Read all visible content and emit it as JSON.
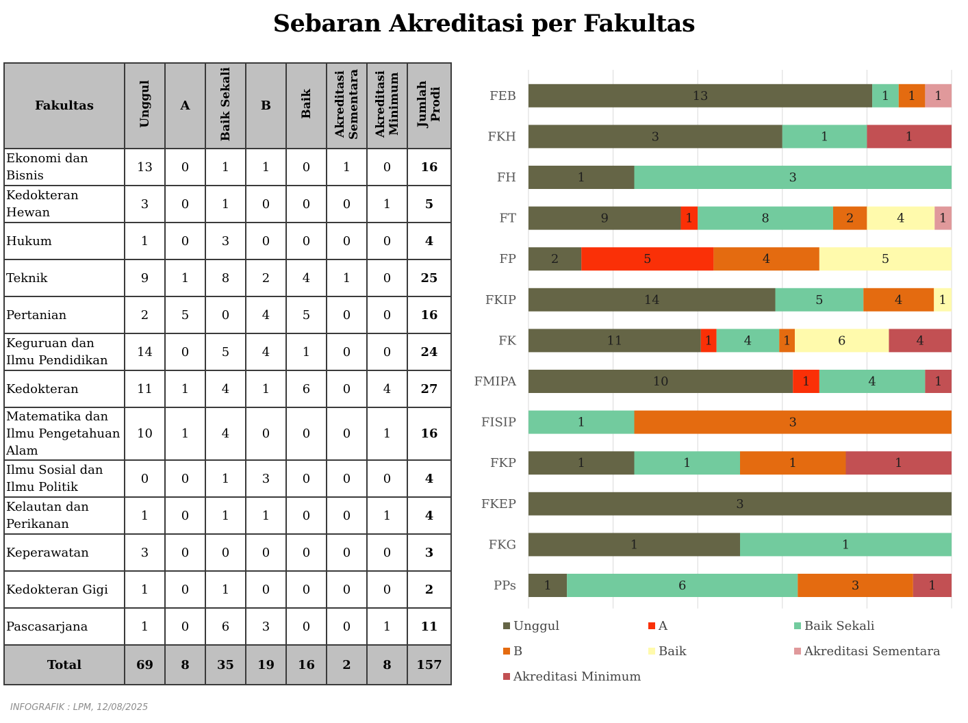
{
  "title": "Sebaran Akreditasi per Fakultas",
  "footnote": "INFOGRAFIK : LPM, 12/08/2025",
  "table": {
    "headers": [
      "Fakultas",
      "Unggul",
      "A",
      "Baik Sekali",
      "B",
      "Baik",
      "Akreditasi Sementara",
      "Akreditasi Minimum",
      "Jumlah Prodi"
    ],
    "rows": [
      {
        "name": "Ekonomi dan Bisnis",
        "values": [
          "13",
          "0",
          "1",
          "1",
          "0",
          "1",
          "0"
        ],
        "total": "16"
      },
      {
        "name": "Kedokteran Hewan",
        "values": [
          "3",
          "0",
          "1",
          "0",
          "0",
          "0",
          "1"
        ],
        "total": "5"
      },
      {
        "name": "Hukum",
        "values": [
          "1",
          "0",
          "3",
          "0",
          "0",
          "0",
          "0"
        ],
        "total": "4"
      },
      {
        "name": "Teknik",
        "values": [
          "9",
          "1",
          "8",
          "2",
          "4",
          "1",
          "0"
        ],
        "total": "25"
      },
      {
        "name": "Pertanian",
        "values": [
          "2",
          "5",
          "0",
          "4",
          "5",
          "0",
          "0"
        ],
        "total": "16"
      },
      {
        "name": "Keguruan dan Ilmu Pendidikan",
        "values": [
          "14",
          "0",
          "5",
          "4",
          "1",
          "0",
          "0"
        ],
        "total": "24"
      },
      {
        "name": "Kedokteran",
        "values": [
          "11",
          "1",
          "4",
          "1",
          "6",
          "0",
          "4"
        ],
        "total": "27"
      },
      {
        "name": "Matematika dan Ilmu Pengetahuan Alam",
        "values": [
          "10",
          "1",
          "4",
          "0",
          "0",
          "0",
          "1"
        ],
        "total": "16"
      },
      {
        "name": "Ilmu Sosial dan Ilmu Politik",
        "values": [
          "0",
          "0",
          "1",
          "3",
          "0",
          "0",
          "0"
        ],
        "total": "4"
      },
      {
        "name": "Kelautan dan Perikanan",
        "values": [
          "1",
          "0",
          "1",
          "1",
          "0",
          "0",
          "1"
        ],
        "total": "4"
      },
      {
        "name": "Keperawatan",
        "values": [
          "3",
          "0",
          "0",
          "0",
          "0",
          "0",
          "0"
        ],
        "total": "3"
      },
      {
        "name": "Kedokteran Gigi",
        "values": [
          "1",
          "0",
          "1",
          "0",
          "0",
          "0",
          "0"
        ],
        "total": "2"
      },
      {
        "name": "Pascasarjana",
        "values": [
          "1",
          "0",
          "6",
          "3",
          "0",
          "0",
          "1"
        ],
        "total": "11"
      }
    ],
    "total_row": {
      "label": "Total",
      "values": [
        "69",
        "8",
        "35",
        "19",
        "16",
        "2",
        "8"
      ],
      "total": "157"
    }
  },
  "chart_data": {
    "type": "bar",
    "orientation": "horizontal",
    "stacked": "percent",
    "categories": [
      "FEB",
      "FKH",
      "FH",
      "FT",
      "FP",
      "FKIP",
      "FK",
      "FMIPA",
      "FISIP",
      "FKP",
      "FKEP",
      "FKG",
      "PPs"
    ],
    "series": [
      {
        "name": "Unggul",
        "color": "#656546",
        "values": [
          13,
          3,
          1,
          9,
          2,
          14,
          11,
          10,
          0,
          1,
          3,
          1,
          1
        ]
      },
      {
        "name": "A",
        "color": "#fa3007",
        "values": [
          0,
          0,
          0,
          1,
          5,
          0,
          1,
          1,
          0,
          0,
          0,
          0,
          0
        ]
      },
      {
        "name": "Baik Sekali",
        "color": "#72cb9e",
        "values": [
          1,
          1,
          3,
          8,
          0,
          5,
          4,
          4,
          1,
          1,
          0,
          1,
          6
        ]
      },
      {
        "name": "B",
        "color": "#e46b10",
        "values": [
          1,
          0,
          0,
          2,
          4,
          4,
          1,
          0,
          3,
          1,
          0,
          0,
          3
        ]
      },
      {
        "name": "Baik",
        "color": "#fffaac",
        "values": [
          0,
          0,
          0,
          4,
          5,
          1,
          6,
          0,
          0,
          0,
          0,
          0,
          0
        ]
      },
      {
        "name": "Akreditasi Sementara",
        "color": "#e0999b",
        "values": [
          1,
          0,
          0,
          1,
          0,
          0,
          0,
          0,
          0,
          0,
          0,
          0,
          0
        ]
      },
      {
        "name": "Akreditasi Minimum",
        "color": "#c25053",
        "values": [
          0,
          1,
          0,
          0,
          0,
          0,
          4,
          1,
          0,
          1,
          0,
          0,
          1
        ]
      }
    ],
    "data_labels": true,
    "grid": "vertical",
    "legend": "bottom"
  }
}
